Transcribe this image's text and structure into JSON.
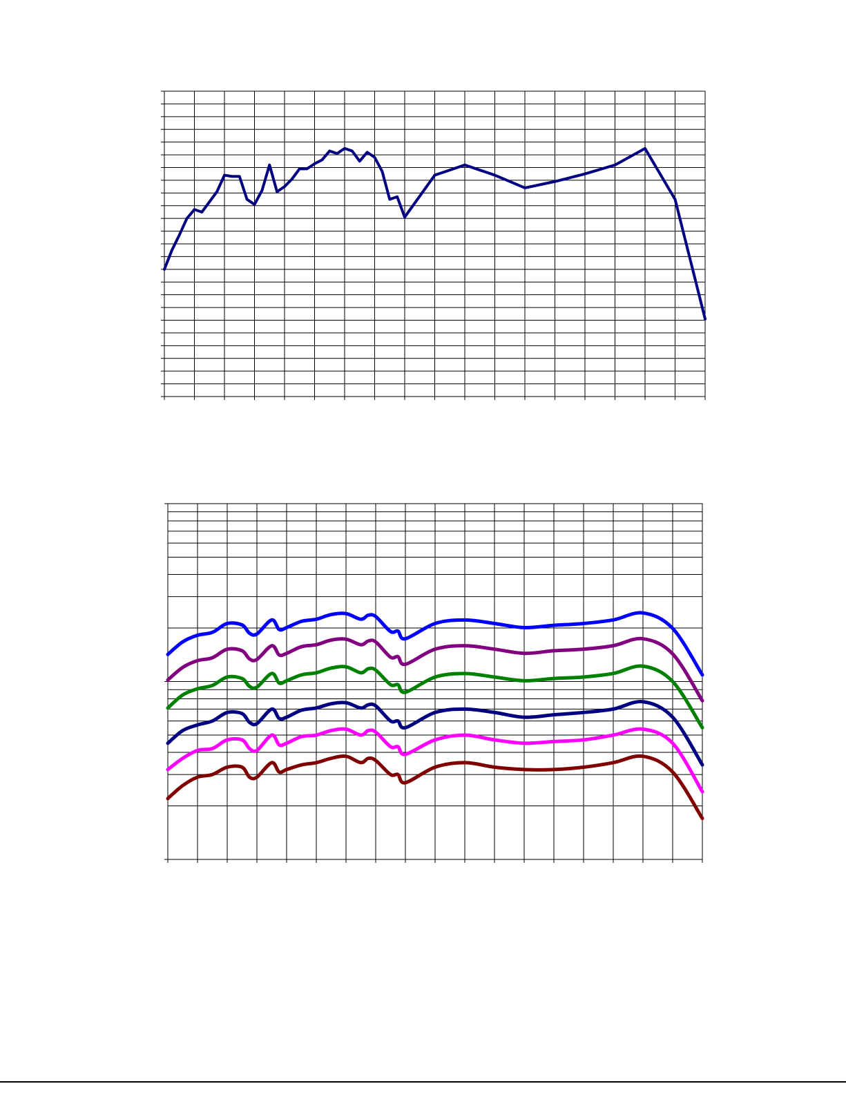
{
  "chart_data": [
    {
      "type": "line",
      "grid": true,
      "x": [
        0,
        0.25,
        0.5,
        0.75,
        1,
        1.25,
        1.5,
        1.75,
        2,
        2.25,
        2.5,
        2.75,
        3,
        3.25,
        3.5,
        3.75,
        4,
        4.25,
        4.5,
        4.75,
        5,
        5.25,
        5.5,
        5.75,
        6,
        6.25,
        6.5,
        6.75,
        7,
        7.25,
        7.5,
        7.75,
        8,
        9,
        10,
        11,
        12,
        13,
        14,
        15,
        16,
        17,
        18
      ],
      "series": [
        {
          "color": "#000080",
          "values": [
            10.0,
            11.5,
            12.7,
            14.0,
            14.7,
            14.5,
            15.3,
            16.1,
            17.4,
            17.3,
            17.3,
            15.5,
            15.1,
            16.2,
            18.2,
            16.1,
            16.5,
            17.1,
            17.9,
            17.9,
            18.3,
            18.6,
            19.3,
            19.1,
            19.5,
            19.3,
            18.5,
            19.2,
            18.8,
            17.7,
            15.5,
            15.7,
            14.1,
            17.4,
            18.2,
            17.4,
            16.4,
            16.9,
            17.5,
            18.2,
            19.5,
            15.5,
            6.1
          ]
        }
      ],
      "xlim": [
        0,
        18
      ],
      "xticks": [
        0,
        1,
        2,
        3,
        4,
        5,
        6,
        7,
        8,
        9,
        10,
        11,
        12,
        13,
        14,
        15,
        16,
        17,
        18
      ],
      "ylim": [
        0,
        24
      ],
      "yticks": [
        0,
        1,
        2,
        3,
        4,
        5,
        6,
        7,
        8,
        9,
        10,
        11,
        12,
        13,
        14,
        15,
        16,
        17,
        18,
        19,
        20,
        21,
        22,
        23,
        24
      ]
    },
    {
      "type": "line",
      "grid": true,
      "log_y": true,
      "smooth": true,
      "x": [
        0,
        0.5,
        1,
        1.5,
        2,
        2.5,
        2.75,
        3,
        3.5,
        3.75,
        4,
        4.5,
        5,
        5.5,
        6,
        6.5,
        6.75,
        7,
        7.5,
        7.75,
        8,
        9,
        10,
        11,
        12,
        13,
        14,
        15,
        16,
        17,
        18
      ],
      "series": [
        {
          "color": "#0000ff",
          "values": [
            14.2,
            16.7,
            18.2,
            18.9,
            21.2,
            20.8,
            18.7,
            18.5,
            22.2,
            19.6,
            20.1,
            21.8,
            22.4,
            23.8,
            24.1,
            22.4,
            23.6,
            23.2,
            19.1,
            19.2,
            17.4,
            21.2,
            22.2,
            21.2,
            20.1,
            20.7,
            21.2,
            22.2,
            24.3,
            19.9,
            10.9
          ]
        },
        {
          "color": "#800080",
          "values": [
            10.2,
            12.0,
            13.1,
            13.6,
            15.2,
            14.9,
            13.4,
            13.3,
            15.9,
            14.1,
            14.4,
            15.7,
            16.1,
            17.1,
            17.3,
            16.1,
            16.9,
            16.7,
            13.7,
            13.8,
            12.5,
            15.2,
            15.9,
            15.2,
            14.4,
            14.9,
            15.2,
            15.9,
            17.4,
            14.3,
            7.8
          ]
        },
        {
          "color": "#008000",
          "values": [
            7.1,
            8.4,
            9.1,
            9.5,
            10.6,
            10.4,
            9.4,
            9.3,
            11.1,
            9.8,
            10.1,
            10.9,
            11.2,
            11.9,
            12.1,
            11.2,
            11.8,
            11.6,
            9.6,
            9.6,
            8.7,
            10.6,
            11.1,
            10.6,
            10.1,
            10.4,
            10.6,
            11.1,
            12.2,
            10.0,
            5.5
          ]
        },
        {
          "color": "#000080",
          "values": [
            4.5,
            5.3,
            5.7,
            6.0,
            6.7,
            6.6,
            5.9,
            5.8,
            7.0,
            6.2,
            6.3,
            6.9,
            7.1,
            7.5,
            7.6,
            7.1,
            7.4,
            7.3,
            6.0,
            6.0,
            5.5,
            6.7,
            7.0,
            6.7,
            6.3,
            6.5,
            6.7,
            7.0,
            7.7,
            6.3,
            3.4
          ]
        },
        {
          "color": "#ff00ff",
          "values": [
            3.2,
            3.7,
            4.1,
            4.2,
            4.7,
            4.7,
            4.2,
            4.1,
            5.0,
            4.4,
            4.5,
            4.9,
            5.0,
            5.3,
            5.4,
            5.0,
            5.3,
            5.2,
            4.3,
            4.3,
            3.9,
            4.7,
            5.0,
            4.7,
            4.5,
            4.6,
            4.7,
            5.0,
            5.4,
            4.5,
            2.4
          ]
        },
        {
          "color": "#800000",
          "values": [
            2.2,
            2.6,
            2.9,
            3.0,
            3.3,
            3.3,
            2.9,
            2.9,
            3.5,
            3.1,
            3.2,
            3.4,
            3.5,
            3.7,
            3.8,
            3.5,
            3.7,
            3.6,
            3.0,
            3.0,
            2.7,
            3.3,
            3.5,
            3.3,
            3.2,
            3.2,
            3.3,
            3.5,
            3.8,
            3.1,
            1.7
          ]
        }
      ],
      "xlim": [
        0,
        18
      ],
      "xticks": [
        0,
        1,
        2,
        3,
        4,
        5,
        6,
        7,
        8,
        9,
        10,
        11,
        12,
        13,
        14,
        15,
        16,
        17,
        18
      ],
      "ylim": [
        1,
        100
      ],
      "yticks": [
        1,
        10,
        100
      ],
      "y_minor_ticks": [
        2,
        3,
        4,
        5,
        6,
        7,
        8,
        9,
        20,
        30,
        40,
        50,
        60,
        70,
        80,
        90
      ]
    }
  ]
}
